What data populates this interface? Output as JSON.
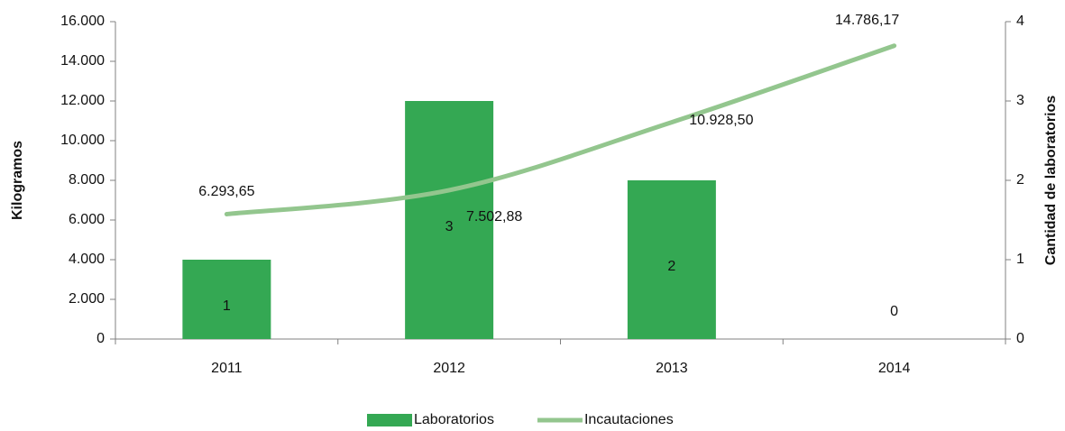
{
  "chart_data": {
    "type": "bar",
    "categories": [
      "2011",
      "2012",
      "2013",
      "2014"
    ],
    "ylabel": "Kilogramos",
    "y2label": "Cantidad de laboratorios",
    "ylim": [
      0,
      16000
    ],
    "yticks": [
      0,
      {
        "value": 2000,
        "label": "2.000"
      },
      {
        "value": 4000,
        "label": "4.000"
      },
      {
        "value": 6000,
        "label": "6.000"
      },
      {
        "value": 8000,
        "label": "8.000"
      },
      {
        "value": 10000,
        "label": "10.000"
      },
      {
        "value": 12000,
        "label": "12.000"
      },
      {
        "value": 14000,
        "label": "14.000"
      },
      {
        "value": 16000,
        "label": "16.000"
      }
    ],
    "y2lim": [
      0,
      4
    ],
    "y2ticks": [
      0,
      1,
      2,
      3,
      4
    ],
    "legend": "bottom",
    "series": [
      {
        "name": "Laboratorios",
        "type": "bar",
        "axis": "y2",
        "color": "#34a853",
        "values": [
          1,
          3,
          2,
          0
        ]
      },
      {
        "name": "Incautaciones",
        "type": "line",
        "color": "#93c68e",
        "values": [
          6293.65,
          7502.88,
          10928.5,
          14786.17
        ],
        "value_labels": [
          "6.293,65",
          "7.502,88",
          "10.928,50",
          "14.786,17"
        ]
      }
    ]
  }
}
